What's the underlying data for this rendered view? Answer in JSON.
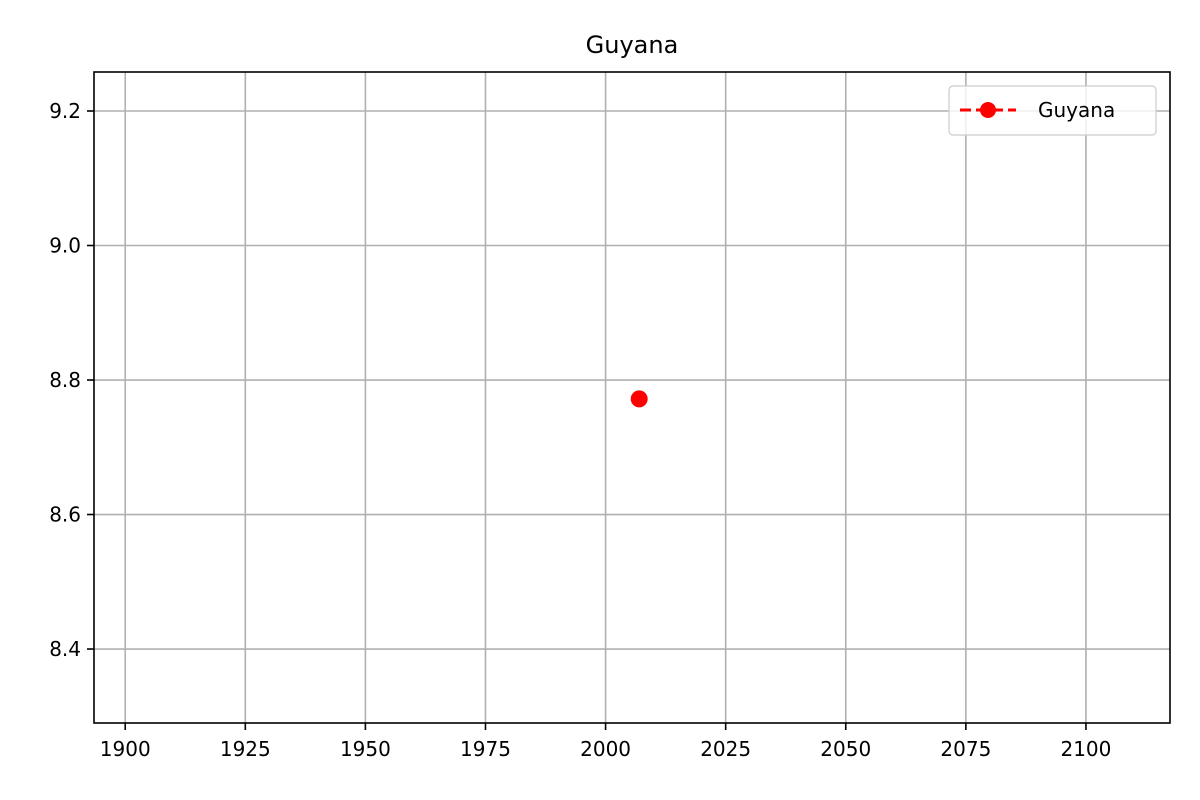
{
  "chart_data": {
    "type": "line",
    "title": "Guyana",
    "xlabel": "",
    "ylabel": "",
    "xlim": [
      1893.5,
      2117.5
    ],
    "ylim": [
      8.29,
      9.258
    ],
    "x_ticks": [
      1900,
      1925,
      1950,
      1975,
      2000,
      2025,
      2050,
      2075,
      2100
    ],
    "y_ticks": [
      8.4,
      8.6,
      8.8,
      9.0,
      9.2
    ],
    "grid": true,
    "legend_position": "top-right",
    "series": [
      {
        "name": "Guyana",
        "color": "#ff0000",
        "line_style": "dashed",
        "marker": "circle",
        "x": [
          2007
        ],
        "y": [
          8.772
        ]
      }
    ]
  }
}
